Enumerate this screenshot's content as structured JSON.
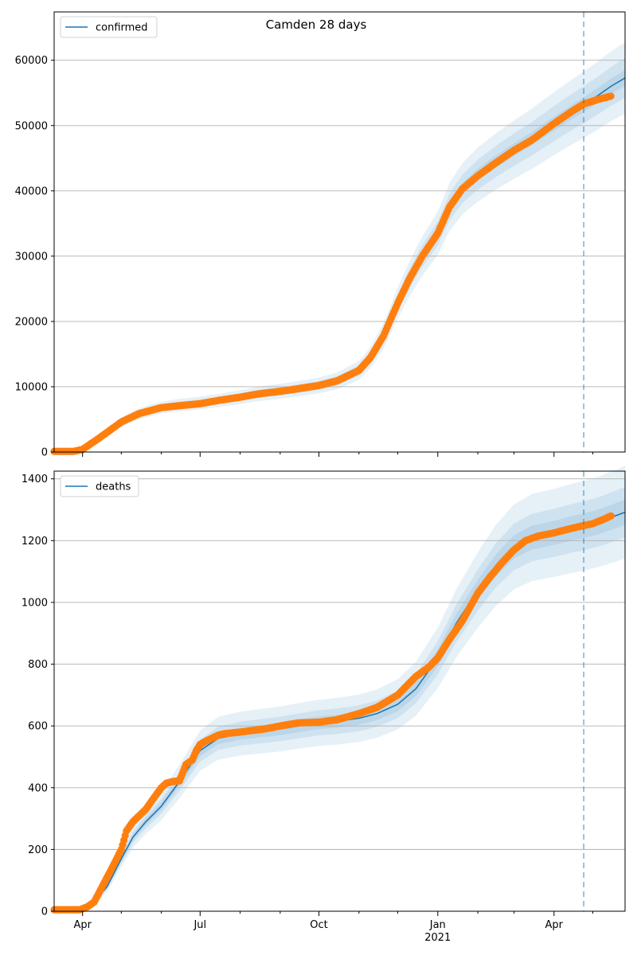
{
  "figure": {
    "title": "Camden 28 days"
  },
  "chart_data": [
    {
      "type": "line",
      "name": "confirmed",
      "legend": "confirmed",
      "legend_position": "top-left",
      "grid": "y-major",
      "xlim": [
        "2020-03-10",
        "2021-05-26"
      ],
      "ylim": [
        0,
        67400
      ],
      "yticks": [
        0,
        10000,
        20000,
        30000,
        40000,
        50000,
        60000
      ],
      "forecast_start": "2021-04-24",
      "model": {
        "x": [
          "2020-03-10",
          "2020-03-25",
          "2020-04-01",
          "2020-04-15",
          "2020-05-01",
          "2020-05-15",
          "2020-06-01",
          "2020-06-15",
          "2020-07-01",
          "2020-07-15",
          "2020-08-01",
          "2020-08-15",
          "2020-09-01",
          "2020-09-15",
          "2020-10-01",
          "2020-10-15",
          "2020-11-01",
          "2020-11-10",
          "2020-11-20",
          "2020-12-01",
          "2020-12-10",
          "2020-12-20",
          "2021-01-01",
          "2021-01-10",
          "2021-01-20",
          "2021-02-01",
          "2021-02-15",
          "2021-03-01",
          "2021-03-15",
          "2021-04-01",
          "2021-04-15",
          "2021-04-24",
          "2021-05-05",
          "2021-05-15",
          "2021-05-26"
        ],
        "y": [
          0,
          0,
          400,
          2300,
          4600,
          5900,
          6800,
          7200,
          7500,
          7900,
          8400,
          8900,
          9300,
          9700,
          10200,
          10900,
          12500,
          14500,
          17800,
          22800,
          26500,
          30000,
          33500,
          37500,
          40300,
          42500,
          44500,
          46300,
          48000,
          50300,
          52100,
          53200,
          54600,
          56000,
          57300
        ],
        "band_widths": [
          0.02,
          0.05,
          0.09
        ]
      },
      "observed": {
        "x": [
          "2020-03-10",
          "2020-03-25",
          "2020-04-01",
          "2020-04-15",
          "2020-05-01",
          "2020-05-15",
          "2020-06-01",
          "2020-06-15",
          "2020-07-01",
          "2020-07-15",
          "2020-08-01",
          "2020-08-15",
          "2020-09-01",
          "2020-09-15",
          "2020-10-01",
          "2020-10-15",
          "2020-11-01",
          "2020-11-10",
          "2020-11-20",
          "2020-12-01",
          "2020-12-10",
          "2020-12-20",
          "2021-01-01",
          "2021-01-10",
          "2021-01-20",
          "2021-02-01",
          "2021-02-15",
          "2021-03-01",
          "2021-03-15",
          "2021-04-01",
          "2021-04-15",
          "2021-04-24",
          "2021-05-05",
          "2021-05-15"
        ],
        "y": [
          100,
          100,
          400,
          2300,
          4600,
          5900,
          6800,
          7100,
          7400,
          7900,
          8400,
          8900,
          9300,
          9700,
          10200,
          10900,
          12500,
          14500,
          17800,
          22800,
          26500,
          30000,
          33500,
          37500,
          40300,
          42300,
          44300,
          46200,
          47800,
          50300,
          52200,
          53300,
          54000,
          54500
        ]
      }
    },
    {
      "type": "line",
      "name": "deaths",
      "legend": "deaths",
      "legend_position": "top-left",
      "grid": "y-major",
      "xlim": [
        "2020-03-10",
        "2021-05-26"
      ],
      "xticks": [
        {
          "date": "2020-04-01",
          "label": "Apr",
          "sub": ""
        },
        {
          "date": "2020-07-01",
          "label": "Jul",
          "sub": ""
        },
        {
          "date": "2020-10-01",
          "label": "Oct",
          "sub": ""
        },
        {
          "date": "2021-01-01",
          "label": "Jan",
          "sub": "2021"
        },
        {
          "date": "2021-04-01",
          "label": "Apr",
          "sub": ""
        }
      ],
      "ylim": [
        0,
        1425
      ],
      "yticks": [
        0,
        200,
        400,
        600,
        800,
        1000,
        1200,
        1400
      ],
      "forecast_start": "2021-04-24",
      "model": {
        "x": [
          "2020-03-10",
          "2020-03-30",
          "2020-04-10",
          "2020-04-20",
          "2020-05-01",
          "2020-05-10",
          "2020-05-20",
          "2020-06-01",
          "2020-06-15",
          "2020-07-01",
          "2020-07-15",
          "2020-08-01",
          "2020-08-15",
          "2020-09-01",
          "2020-09-15",
          "2020-10-01",
          "2020-10-15",
          "2020-11-01",
          "2020-11-15",
          "2020-12-01",
          "2020-12-15",
          "2021-01-01",
          "2021-01-15",
          "2021-02-01",
          "2021-02-15",
          "2021-03-01",
          "2021-03-15",
          "2021-04-01",
          "2021-04-15",
          "2021-04-24",
          "2021-05-05",
          "2021-05-15",
          "2021-05-26"
        ],
        "y": [
          0,
          0,
          30,
          80,
          170,
          240,
          290,
          340,
          420,
          520,
          560,
          575,
          582,
          590,
          600,
          610,
          615,
          625,
          640,
          670,
          720,
          820,
          930,
          1040,
          1120,
          1180,
          1210,
          1225,
          1240,
          1248,
          1260,
          1275,
          1292
        ],
        "band_widths": [
          0.03,
          0.06,
          0.11
        ]
      },
      "observed": {
        "x": [
          "2020-03-10",
          "2020-03-30",
          "2020-04-05",
          "2020-04-10",
          "2020-04-15",
          "2020-04-20",
          "2020-04-25",
          "2020-05-01",
          "2020-05-05",
          "2020-05-10",
          "2020-05-15",
          "2020-05-20",
          "2020-05-25",
          "2020-06-01",
          "2020-06-05",
          "2020-06-10",
          "2020-06-15",
          "2020-06-20",
          "2020-06-25",
          "2020-06-28",
          "2020-07-01",
          "2020-07-05",
          "2020-07-10",
          "2020-07-15",
          "2020-07-20",
          "2020-08-01",
          "2020-08-10",
          "2020-08-20",
          "2020-09-01",
          "2020-09-15",
          "2020-10-01",
          "2020-10-15",
          "2020-11-01",
          "2020-11-15",
          "2020-12-01",
          "2020-12-15",
          "2020-12-25",
          "2021-01-01",
          "2021-01-10",
          "2021-01-20",
          "2021-02-01",
          "2021-02-10",
          "2021-02-20",
          "2021-03-01",
          "2021-03-10",
          "2021-03-20",
          "2021-04-01",
          "2021-04-10",
          "2021-04-20",
          "2021-05-01",
          "2021-05-10",
          "2021-05-15"
        ],
        "y": [
          5,
          5,
          15,
          30,
          70,
          110,
          150,
          200,
          260,
          290,
          310,
          330,
          360,
          400,
          415,
          420,
          422,
          475,
          490,
          520,
          540,
          550,
          560,
          570,
          575,
          580,
          585,
          590,
          600,
          610,
          612,
          620,
          640,
          660,
          700,
          760,
          790,
          820,
          880,
          940,
          1030,
          1080,
          1130,
          1170,
          1200,
          1215,
          1225,
          1235,
          1245,
          1255,
          1270,
          1280
        ]
      }
    }
  ]
}
